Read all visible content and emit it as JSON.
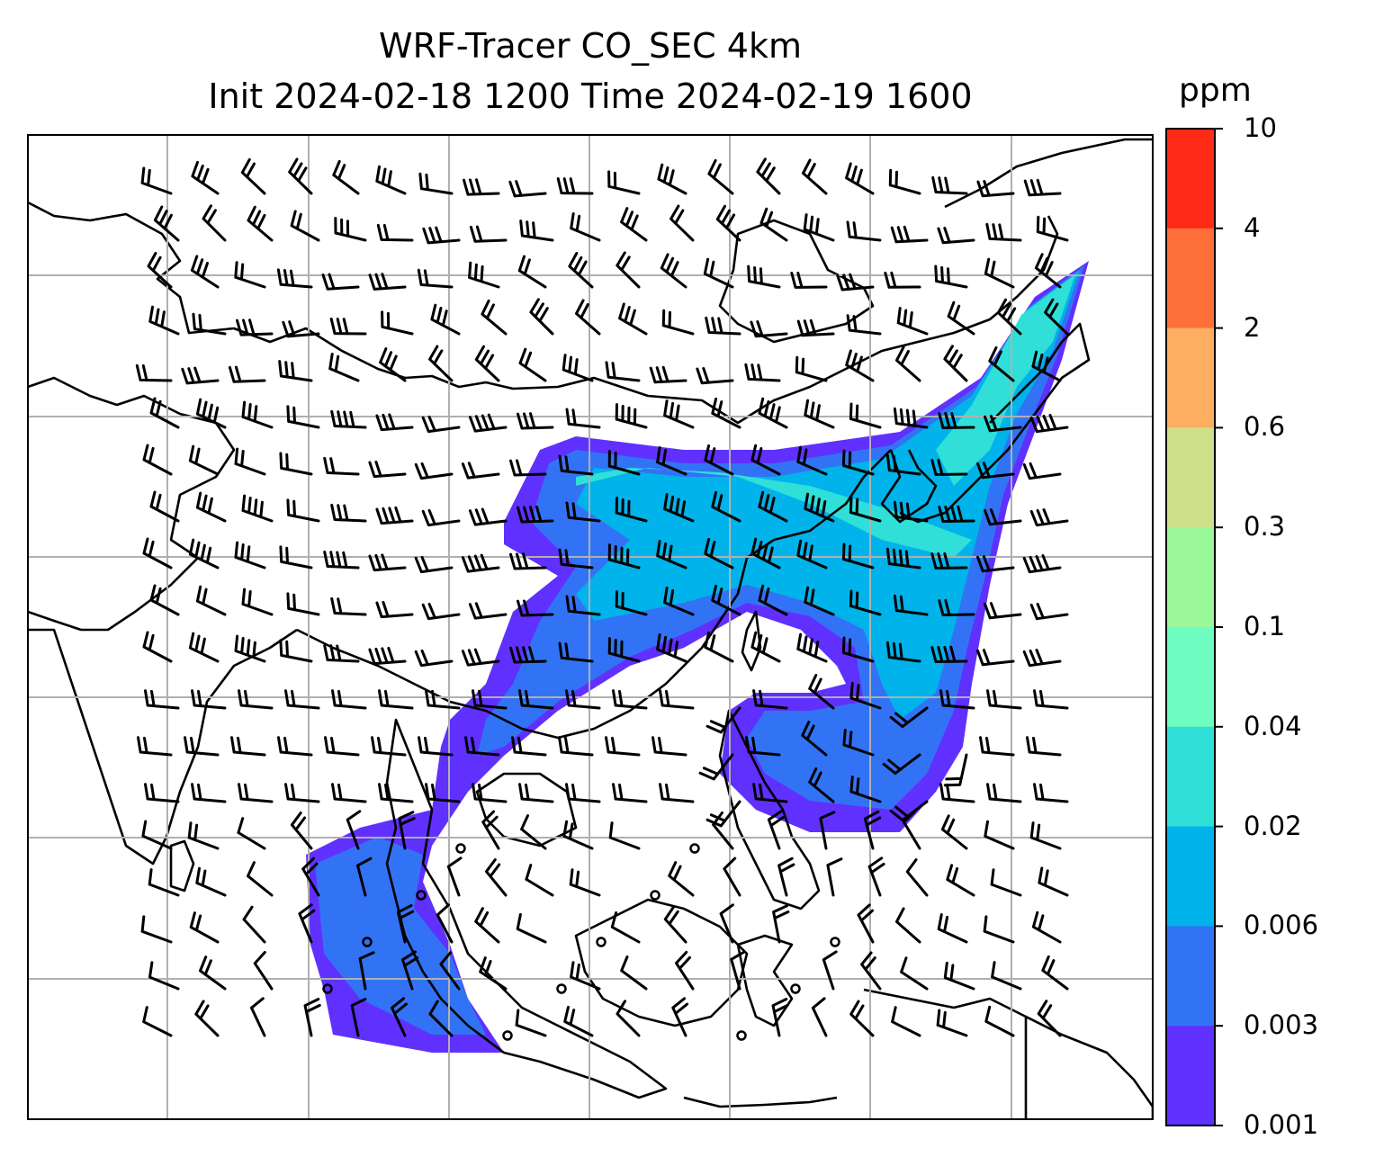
{
  "title": {
    "line1": "WRF-Tracer CO_SEC 4km",
    "line2": "Init 2024-02-18 1200 Time 2024-02-19 1600"
  },
  "colorbar": {
    "unit": "ppm",
    "ticks": [
      "10",
      "4",
      "2",
      "0.6",
      "0.3",
      "0.1",
      "0.04",
      "0.02",
      "0.006",
      "0.003",
      "0.001"
    ],
    "colors": [
      "#ff2a16",
      "#ff6f3a",
      "#fdae61",
      "#cfe08a",
      "#9af79a",
      "#6efcc0",
      "#2fdfd8",
      "#00b3ea",
      "#3273f5",
      "#6030ff"
    ]
  },
  "map": {
    "gridlines": "on",
    "colors": {
      "gridline": "#b0b0b0",
      "coastline": "#000000"
    }
  }
}
